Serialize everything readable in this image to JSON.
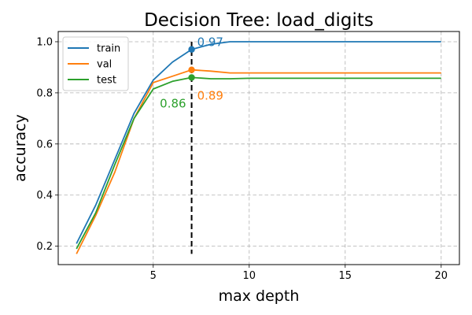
{
  "chart_data": {
    "type": "line",
    "title": "Decision Tree: load_digits",
    "xlabel": "max depth",
    "ylabel": "accuracy",
    "xlim": [
      0.05,
      20.95
    ],
    "ylim": [
      0.128,
      1.04
    ],
    "xticks": [
      5,
      10,
      15,
      20
    ],
    "yticks": [
      0.2,
      0.4,
      0.6,
      0.8,
      1.0
    ],
    "xtick_labels": [
      "5",
      "10",
      "15",
      "20"
    ],
    "ytick_labels": [
      "0.2",
      "0.4",
      "0.6",
      "0.8",
      "1.0"
    ],
    "grid": true,
    "legend_position": "top-left",
    "x": [
      1,
      2,
      3,
      4,
      5,
      6,
      7,
      8,
      9,
      10,
      11,
      12,
      13,
      14,
      15,
      16,
      17,
      18,
      19,
      20
    ],
    "series": [
      {
        "name": "train",
        "color": "#1f77b4",
        "values": [
          0.21,
          0.36,
          0.54,
          0.72,
          0.85,
          0.92,
          0.97,
          0.99,
          1.0,
          1.0,
          1.0,
          1.0,
          1.0,
          1.0,
          1.0,
          1.0,
          1.0,
          1.0,
          1.0,
          1.0
        ]
      },
      {
        "name": "val",
        "color": "#ff7f0e",
        "values": [
          0.17,
          0.32,
          0.49,
          0.7,
          0.84,
          0.865,
          0.89,
          0.885,
          0.878,
          0.878,
          0.878,
          0.878,
          0.878,
          0.878,
          0.878,
          0.878,
          0.878,
          0.878,
          0.878,
          0.878
        ]
      },
      {
        "name": "test",
        "color": "#2ca02c",
        "values": [
          0.19,
          0.33,
          0.52,
          0.7,
          0.815,
          0.845,
          0.86,
          0.855,
          0.855,
          0.857,
          0.857,
          0.857,
          0.857,
          0.857,
          0.857,
          0.857,
          0.857,
          0.857,
          0.857,
          0.857
        ]
      }
    ],
    "marker": {
      "x": 7,
      "line_color": "#000000",
      "points": [
        {
          "series": "train",
          "y": 0.97,
          "label": "0.97",
          "color": "#1f77b4"
        },
        {
          "series": "val",
          "y": 0.89,
          "label": "0.89",
          "color": "#ff7f0e"
        },
        {
          "series": "test",
          "y": 0.86,
          "label": "0.86",
          "color": "#2ca02c"
        }
      ]
    }
  }
}
